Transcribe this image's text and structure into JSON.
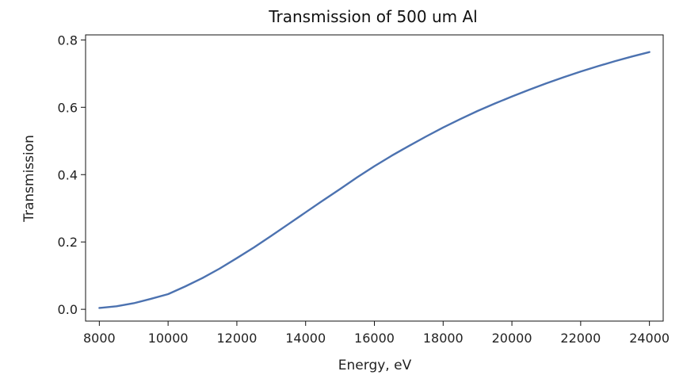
{
  "chart_data": {
    "type": "line",
    "title": "Transmission of 500 um Al",
    "xlabel": "Energy, eV",
    "ylabel": "Transmission",
    "xlim": [
      7600,
      24400
    ],
    "ylim": [
      -0.035,
      0.815
    ],
    "grid": false,
    "legend": "none",
    "xticks": [
      8000,
      10000,
      12000,
      14000,
      16000,
      18000,
      20000,
      22000,
      24000
    ],
    "yticks": [
      0.0,
      0.2,
      0.4,
      0.6,
      0.8
    ],
    "xtick_labels": [
      "8000",
      "10000",
      "12000",
      "14000",
      "16000",
      "18000",
      "20000",
      "22000",
      "24000"
    ],
    "ytick_labels": [
      "0.0",
      "0.2",
      "0.4",
      "0.6",
      "0.8"
    ],
    "series": [
      {
        "color": "#4c72b0",
        "x": [
          8000,
          8500,
          9000,
          9500,
          10000,
          10500,
          11000,
          11500,
          12000,
          12500,
          13000,
          13500,
          14000,
          14500,
          15000,
          15500,
          16000,
          16500,
          17000,
          17500,
          18000,
          18500,
          19000,
          19500,
          20000,
          20500,
          21000,
          21500,
          22000,
          22500,
          23000,
          23500,
          24000
        ],
        "y": [
          0.004,
          0.009,
          0.018,
          0.031,
          0.045,
          0.068,
          0.093,
          0.121,
          0.152,
          0.184,
          0.218,
          0.253,
          0.288,
          0.323,
          0.357,
          0.392,
          0.425,
          0.456,
          0.485,
          0.513,
          0.54,
          0.565,
          0.589,
          0.611,
          0.632,
          0.652,
          0.671,
          0.689,
          0.706,
          0.722,
          0.737,
          0.751,
          0.764
        ]
      }
    ]
  }
}
